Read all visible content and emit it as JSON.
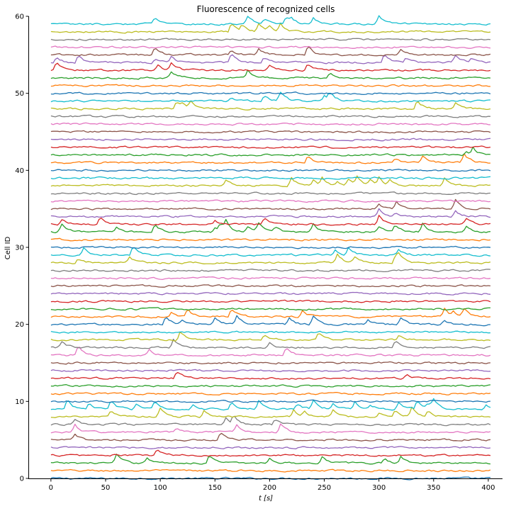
{
  "chart_data": {
    "type": "line",
    "title": "Fluorescence of recognized cells",
    "xlabel": "t [s]",
    "ylabel": "Cell ID",
    "xlim": [
      -20,
      413
    ],
    "ylim": [
      0,
      60
    ],
    "x_ticks": [
      0,
      50,
      100,
      150,
      200,
      250,
      300,
      350,
      400
    ],
    "y_ticks": [
      0,
      10,
      20,
      30,
      40,
      50,
      60
    ],
    "grid": false,
    "legend": "none",
    "spines": [
      "left",
      "bottom"
    ],
    "colors": [
      "#1f77b4",
      "#ff7f0e",
      "#2ca02c",
      "#d62728",
      "#9467bd",
      "#8c564b",
      "#e377c2",
      "#7f7f7f",
      "#bcbd22",
      "#17becf"
    ],
    "n_traces": 60,
    "trace_offset_step": 1,
    "t_range": [
      0,
      403
    ],
    "sample_step": 2,
    "transients": [
      {
        "cell": 2,
        "t": [
          60,
          88,
          145,
          200,
          248,
          305,
          320
        ]
      },
      {
        "cell": 3,
        "t": [
          97
        ]
      },
      {
        "cell": 5,
        "t": [
          22,
          155
        ]
      },
      {
        "cell": 6,
        "t": [
          22,
          115,
          170,
          210
        ]
      },
      {
        "cell": 7,
        "t": [
          22,
          160,
          167,
          205
        ]
      },
      {
        "cell": 8,
        "t": [
          55,
          100,
          140,
          222,
          232,
          258,
          300,
          315,
          330,
          345
        ]
      },
      {
        "cell": 9,
        "t": [
          15,
          35,
          55,
          78,
          95,
          130,
          165,
          190,
          225,
          240,
          258,
          278,
          292,
          318,
          335,
          345,
          350,
          398
        ]
      },
      {
        "cell": 13,
        "t": [
          115,
          325
        ]
      },
      {
        "cell": 16,
        "t": [
          25,
          90,
          215
        ]
      },
      {
        "cell": 17,
        "t": [
          10,
          112,
          200,
          315
        ]
      },
      {
        "cell": 18,
        "t": [
          118,
          195,
          245,
          318
        ]
      },
      {
        "cell": 20,
        "t": [
          105,
          120,
          150,
          170,
          218,
          240,
          290,
          320,
          360
        ]
      },
      {
        "cell": 21,
        "t": [
          110,
          125,
          165,
          230,
          360,
          368,
          378
        ]
      },
      {
        "cell": 28,
        "t": [
          25,
          72,
          262,
          278,
          315,
          318
        ]
      },
      {
        "cell": 29,
        "t": [
          30,
          75,
          260,
          272,
          318
        ]
      },
      {
        "cell": 32,
        "t": [
          10,
          60,
          95,
          150,
          155,
          160,
          180,
          190,
          205,
          240,
          300,
          315,
          340,
          380
        ]
      },
      {
        "cell": 33,
        "t": [
          10,
          45,
          150,
          195,
          300,
          380
        ]
      },
      {
        "cell": 34,
        "t": [
          300,
          315,
          370
        ]
      },
      {
        "cell": 35,
        "t": [
          300,
          316,
          370
        ]
      },
      {
        "cell": 38,
        "t": [
          160,
          220,
          240,
          248,
          262,
          272,
          280,
          292,
          300,
          310,
          360
        ]
      },
      {
        "cell": 41,
        "t": [
          235,
          315,
          340,
          378
        ]
      },
      {
        "cell": 42,
        "t": [
          380,
          386,
          405
        ]
      },
      {
        "cell": 48,
        "t": [
          115,
          120,
          128,
          335,
          370
        ]
      },
      {
        "cell": 49,
        "t": [
          165,
          195,
          210,
          250,
          255
        ]
      },
      {
        "cell": 52,
        "t": [
          110,
          180,
          255
        ]
      },
      {
        "cell": 53,
        "t": [
          5,
          98,
          110,
          200,
          235
        ]
      },
      {
        "cell": 54,
        "t": [
          5,
          25,
          95,
          110,
          165,
          195,
          305,
          325,
          370,
          385
        ]
      },
      {
        "cell": 55,
        "t": [
          95,
          165,
          190,
          235,
          320
        ]
      },
      {
        "cell": 58,
        "t": [
          165,
          175,
          190,
          200,
          210
        ]
      },
      {
        "cell": 59,
        "t": [
          95,
          180,
          195,
          215,
          220,
          240,
          300
        ]
      }
    ]
  }
}
